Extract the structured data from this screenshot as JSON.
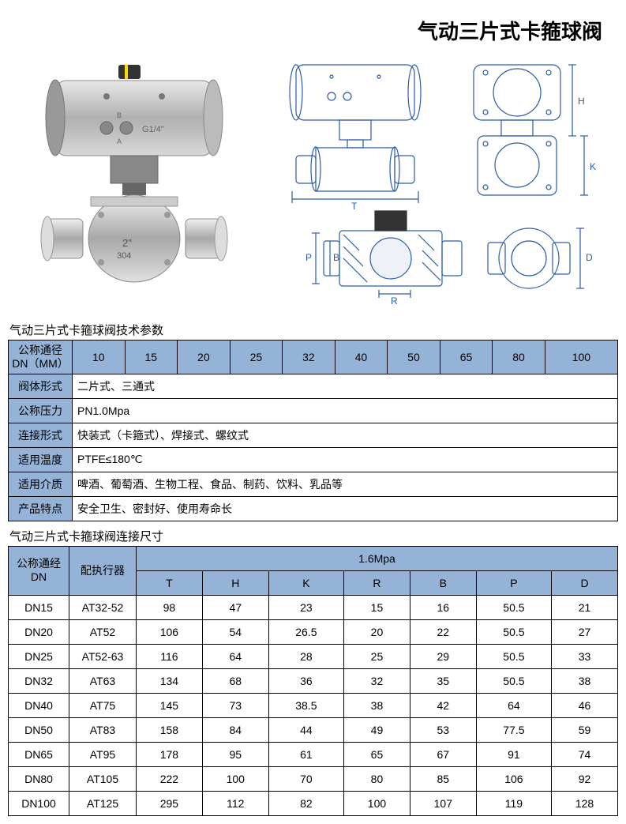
{
  "title": "气动三片式卡箍球阀",
  "section1_title": "气动三片式卡箍球阀技术参数",
  "table1": {
    "row0_label": "公称通径\nDN（MM）",
    "dn_values": [
      "10",
      "15",
      "20",
      "25",
      "32",
      "40",
      "50",
      "65",
      "80",
      "100"
    ],
    "rows": [
      {
        "label": "阀体形式",
        "value": "二片式、三通式"
      },
      {
        "label": "公称压力",
        "value": "PN1.0Mpa"
      },
      {
        "label": "连接形式",
        "value": "快装式（卡箍式）、焊接式、螺纹式"
      },
      {
        "label": "适用温度",
        "value": "PTFE≤180℃"
      },
      {
        "label": "适用介质",
        "value": "啤酒、葡萄酒、生物工程、食品、制药、饮料、乳品等"
      },
      {
        "label": "产品特点",
        "value": "安全卫生、密封好、使用寿命长"
      }
    ]
  },
  "section2_title": "气动三片式卡箍球阀连接尺寸",
  "table2": {
    "h_dn": "公称通经\nDN",
    "h_actuator": "配执行器",
    "h_pressure": "1.6Mpa",
    "cols": [
      "T",
      "H",
      "K",
      "R",
      "B",
      "P",
      "D"
    ],
    "rows": [
      {
        "dn": "DN15",
        "act": "AT32-52",
        "v": [
          "98",
          "47",
          "23",
          "15",
          "16",
          "50.5",
          "21"
        ]
      },
      {
        "dn": "DN20",
        "act": "AT52",
        "v": [
          "106",
          "54",
          "26.5",
          "20",
          "22",
          "50.5",
          "27"
        ]
      },
      {
        "dn": "DN25",
        "act": "AT52-63",
        "v": [
          "116",
          "64",
          "28",
          "25",
          "29",
          "50.5",
          "33"
        ]
      },
      {
        "dn": "DN32",
        "act": "AT63",
        "v": [
          "134",
          "68",
          "36",
          "32",
          "35",
          "50.5",
          "38"
        ]
      },
      {
        "dn": "DN40",
        "act": "AT75",
        "v": [
          "145",
          "73",
          "38.5",
          "38",
          "42",
          "64",
          "46"
        ]
      },
      {
        "dn": "DN50",
        "act": "AT83",
        "v": [
          "158",
          "84",
          "44",
          "49",
          "53",
          "77.5",
          "59"
        ]
      },
      {
        "dn": "DN65",
        "act": "AT95",
        "v": [
          "178",
          "95",
          "61",
          "65",
          "67",
          "91",
          "74"
        ]
      },
      {
        "dn": "DN80",
        "act": "AT105",
        "v": [
          "222",
          "100",
          "70",
          "80",
          "85",
          "106",
          "92"
        ]
      },
      {
        "dn": "DN100",
        "act": "AT125",
        "v": [
          "295",
          "112",
          "82",
          "100",
          "107",
          "119",
          "128"
        ]
      }
    ]
  },
  "diagram_labels": {
    "T": "T",
    "H": "H",
    "K": "K",
    "R": "R",
    "B": "B",
    "P": "P",
    "D": "D"
  },
  "colors": {
    "header_bg": "#95b3d7",
    "border": "#000000",
    "diagram_stroke": "#2a5caa"
  }
}
